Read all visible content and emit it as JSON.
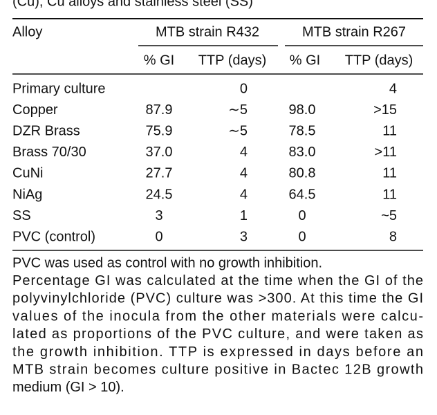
{
  "caption": "(Cu), Cu alloys and stainless steel (SS)",
  "table": {
    "header": {
      "alloy": "Alloy",
      "group1": "MTB strain R432",
      "group2": "MTB strain R267",
      "sub": [
        "% GI",
        "TTP (days)",
        "% GI",
        "TTP (days)"
      ]
    },
    "rows": [
      [
        "Primary culture",
        null,
        "0",
        null,
        "4"
      ],
      [
        "Copper",
        "87.9",
        "∼5",
        "98.0",
        ">15"
      ],
      [
        "DZR Brass",
        "75.9",
        "∼5",
        "78.5",
        "11"
      ],
      [
        "Brass 70/30",
        "37.0",
        "4",
        "83.0",
        ">11"
      ],
      [
        "CuNi",
        "27.7",
        "4",
        "80.8",
        "11"
      ],
      [
        "NiAg",
        "24.5",
        "4",
        "64.5",
        "11"
      ],
      [
        "SS",
        "3",
        "1",
        "0",
        "~5"
      ],
      [
        "PVC (control)",
        "0",
        "3",
        "0",
        "8"
      ]
    ]
  },
  "footnote": {
    "lines": [
      "PVC was used as control with no growth inhibition.",
      "Percentage GI was calculated at the time when the GI of the",
      "polyvinylchloride (PVC) culture was >300. At this time the GI",
      "values of the inocula from the other materials were calcu-",
      "lated as proportions of the PVC culture, and were taken as",
      "the growth inhibition. TTP is expressed in days before an",
      "MTB strain becomes culture positive in Bactec 12B growth",
      "medium (GI > 10)."
    ]
  }
}
